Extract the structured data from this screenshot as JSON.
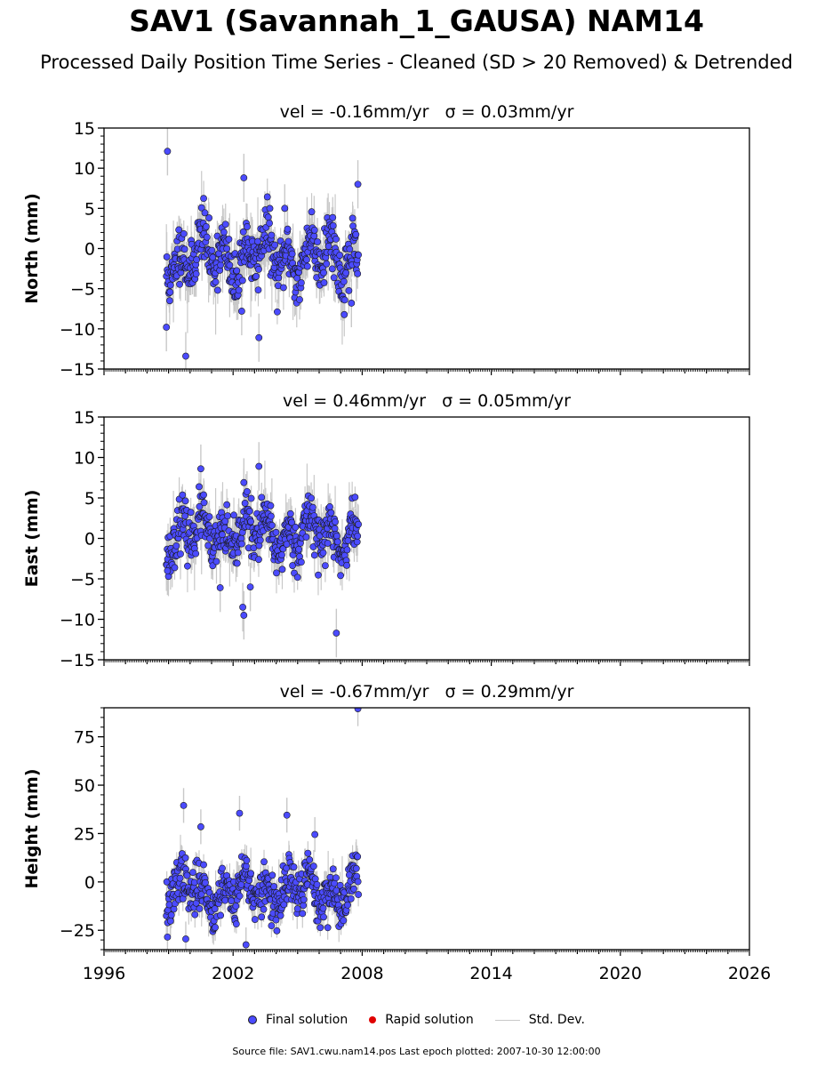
{
  "title": "SAV1 (Savannah_1_GAUSA) NAM14",
  "subtitle": "Processed Daily Position Time Series - Cleaned (SD > 20 Removed) & Detrended",
  "legend": {
    "final": "Final solution",
    "rapid": "Rapid solution",
    "stddev": "Std. Dev."
  },
  "footnote": "Source file: SAV1.cwu.nam14.pos  Last epoch plotted: 2007-10-30 12:00:00",
  "colors": {
    "final": "#4b4bff",
    "rapid": "#e00000",
    "stddev": "#c8c8c8",
    "marker_edge": "#1a1a1a"
  },
  "chart_data": [
    {
      "type": "scatter",
      "panel_title": "vel = -0.16mm/yr   σ = 0.03mm/yr",
      "ylabel": "North (mm)",
      "xlim": [
        1996,
        2026
      ],
      "ylim": [
        -15,
        15
      ],
      "yticks": [
        -15,
        -10,
        -5,
        0,
        5,
        10,
        15
      ],
      "ytick_labels": [
        "−15",
        "−10",
        "−5",
        "0",
        "5",
        "10",
        "15"
      ],
      "data_range": [
        1998.9,
        2007.83
      ],
      "outliers": [
        {
          "x": 1998.95,
          "y": 12.1
        },
        {
          "x": 1998.9,
          "y": -9.8
        },
        {
          "x": 1999.8,
          "y": -13.4
        },
        {
          "x": 2002.5,
          "y": 8.8
        },
        {
          "x": 2002.4,
          "y": -7.8
        },
        {
          "x": 2003.2,
          "y": -11.1
        },
        {
          "x": 2004.4,
          "y": 5.0
        },
        {
          "x": 2007.8,
          "y": 8.0
        },
        {
          "x": 2007.5,
          "y": -6.8
        }
      ]
    },
    {
      "type": "scatter",
      "panel_title": "vel = 0.46mm/yr   σ = 0.05mm/yr",
      "ylabel": "East (mm)",
      "xlim": [
        1996,
        2026
      ],
      "ylim": [
        -15,
        15
      ],
      "yticks": [
        -15,
        -10,
        -5,
        0,
        5,
        10,
        15
      ],
      "ytick_labels": [
        "−15",
        "−10",
        "−5",
        "0",
        "5",
        "10",
        "15"
      ],
      "data_range": [
        1998.9,
        2007.83
      ],
      "outliers": [
        {
          "x": 2000.5,
          "y": 8.6
        },
        {
          "x": 2003.2,
          "y": 8.9
        },
        {
          "x": 2002.5,
          "y": 6.9
        },
        {
          "x": 1998.95,
          "y": -4.0
        },
        {
          "x": 2001.4,
          "y": -6.1
        },
        {
          "x": 2002.45,
          "y": -8.5
        },
        {
          "x": 2002.5,
          "y": -9.5
        },
        {
          "x": 2006.8,
          "y": -11.7
        },
        {
          "x": 2002.8,
          "y": -6.0
        }
      ]
    },
    {
      "type": "scatter",
      "panel_title": "vel = -0.67mm/yr   σ = 0.29mm/yr",
      "ylabel": "Height (mm)",
      "xlim": [
        1996,
        2026
      ],
      "ylim": [
        -35,
        90
      ],
      "yticks": [
        -25,
        0,
        25,
        50,
        75
      ],
      "ytick_labels": [
        "−25",
        "0",
        "25",
        "50",
        "75"
      ],
      "data_range": [
        1998.9,
        2007.83
      ],
      "outliers": [
        {
          "x": 1999.7,
          "y": 39.5
        },
        {
          "x": 2002.3,
          "y": 35.5
        },
        {
          "x": 2004.5,
          "y": 34.5
        },
        {
          "x": 2000.5,
          "y": 28.5
        },
        {
          "x": 2005.8,
          "y": 24.5
        },
        {
          "x": 2007.8,
          "y": 89.5
        },
        {
          "x": 1998.95,
          "y": -28.5
        },
        {
          "x": 1999.8,
          "y": -29.5
        },
        {
          "x": 2002.6,
          "y": -32.5
        }
      ]
    }
  ],
  "xticks": [
    1996,
    2002,
    2008,
    2014,
    2020,
    2026
  ],
  "xtick_labels": [
    "1996",
    "2002",
    "2008",
    "2014",
    "2020",
    "2026"
  ]
}
